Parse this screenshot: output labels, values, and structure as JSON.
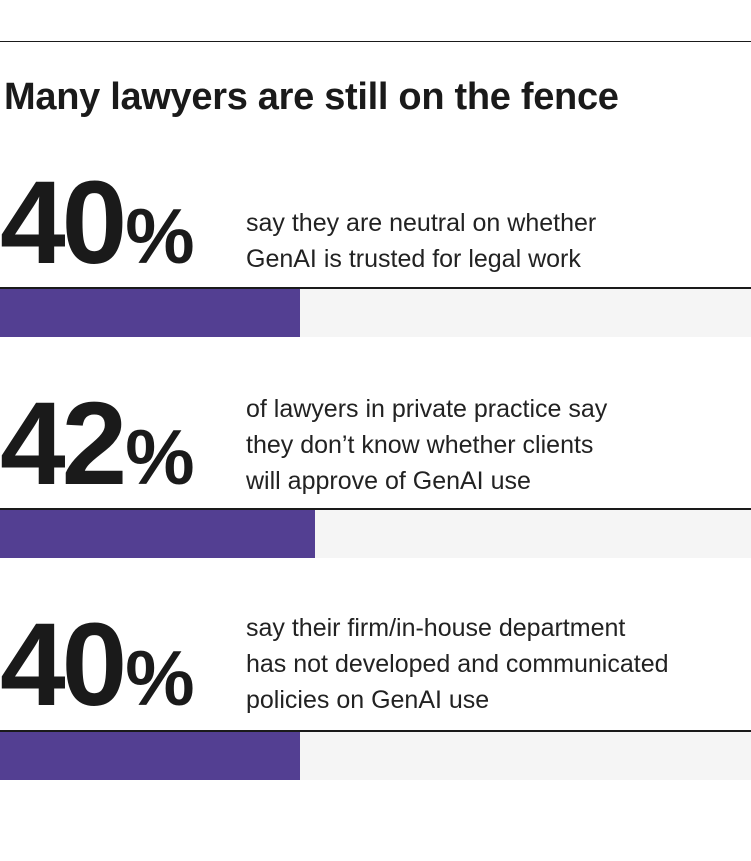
{
  "headline": "Many lawyers are still on the fence",
  "colors": {
    "bar_fill": "#533F92",
    "bar_track": "#F5F5F5",
    "text": "#1A1A1A"
  },
  "chart_data": {
    "type": "bar",
    "orientation": "horizontal",
    "xlim": [
      0,
      100
    ],
    "values_percent": [
      40,
      42,
      40
    ],
    "items": [
      {
        "value": 40,
        "label": "40%",
        "digits": "40",
        "percent_sign": "%",
        "description": [
          "say they are neutral on whether",
          "GenAI is trusted for legal work"
        ]
      },
      {
        "value": 42,
        "label": "42%",
        "digits": "42",
        "percent_sign": "%",
        "description": [
          "of lawyers in private practice say",
          "they don’t know whether clients",
          "will approve of GenAI use"
        ]
      },
      {
        "value": 40,
        "label": "40%",
        "digits": "40",
        "percent_sign": "%",
        "description": [
          "say their firm/in-house department",
          "has not developed and communicated",
          "policies on GenAI use"
        ]
      }
    ]
  }
}
